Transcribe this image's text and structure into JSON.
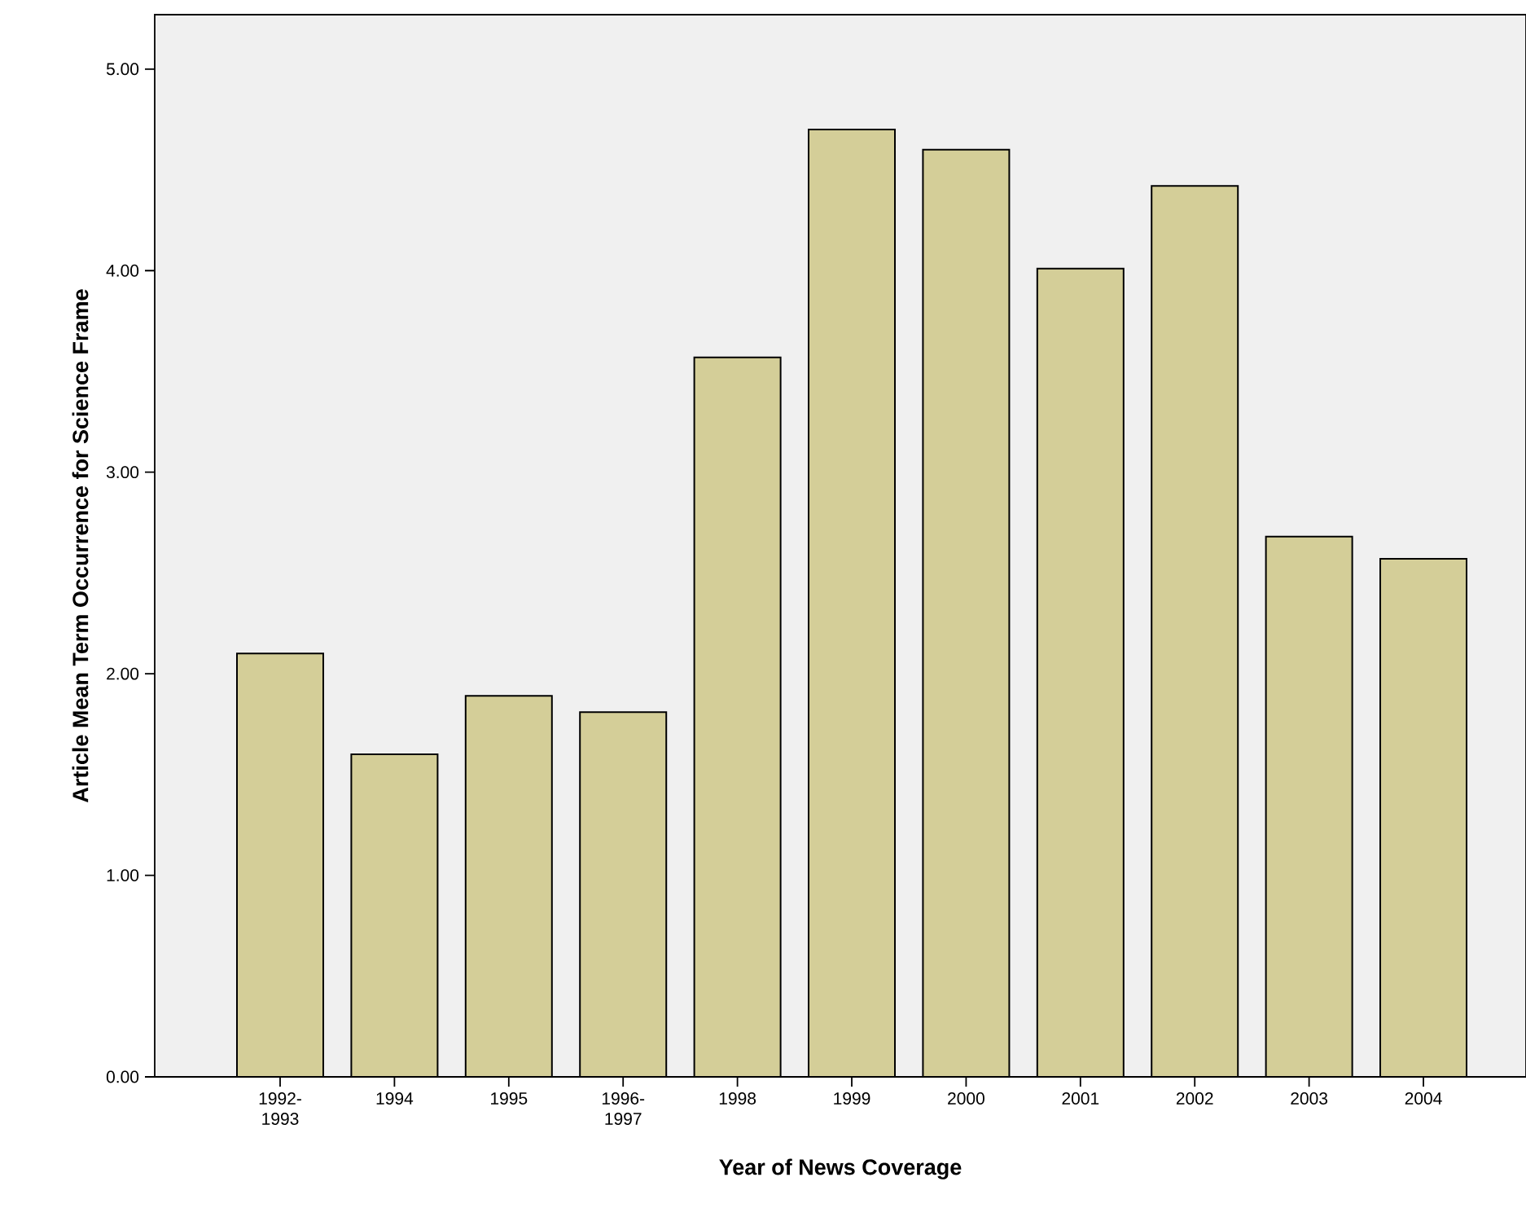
{
  "chart_data": {
    "type": "bar",
    "xlabel": "Year of News Coverage",
    "ylabel": "Article Mean Term Occurrence for Science Frame",
    "categories": [
      "1992-1993",
      "1994",
      "1995",
      "1996-1997",
      "1998",
      "1999",
      "2000",
      "2001",
      "2002",
      "2003",
      "2004"
    ],
    "values": [
      2.1,
      1.6,
      1.89,
      1.81,
      3.57,
      4.7,
      4.6,
      4.01,
      4.42,
      2.68,
      2.57
    ],
    "color": "#d4ce98",
    "ylim": [
      0,
      5.27
    ],
    "yticks": [
      {
        "value": 0,
        "label": "0.00"
      },
      {
        "value": 1,
        "label": "1.00"
      },
      {
        "value": 2,
        "label": "2.00"
      },
      {
        "value": 3,
        "label": "3.00"
      },
      {
        "value": 4,
        "label": "4.00"
      },
      {
        "value": 5,
        "label": "5.00"
      }
    ]
  }
}
